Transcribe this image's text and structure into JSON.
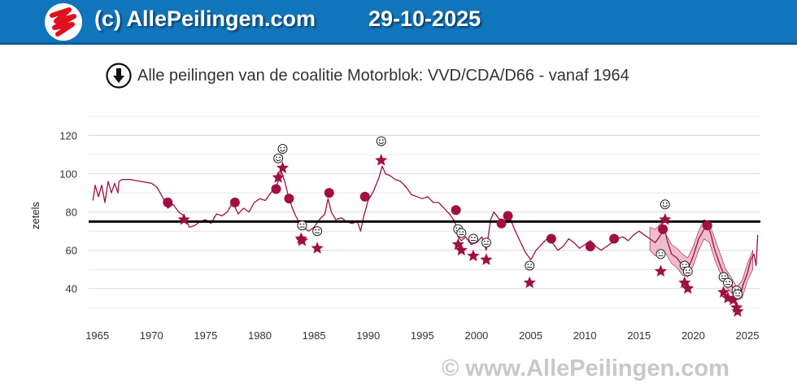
{
  "header": {
    "site_name": "(c) AllePeilingen.com",
    "date": "29-10-2025",
    "logo_icon": "allepeilingen-logo-icon"
  },
  "title_icon": "download-arrow-icon",
  "watermark": "© www.AllePeilingen.com",
  "colors": {
    "header_bg": "#1175bb",
    "line": "#a0103e",
    "band": "#e8a7bf",
    "majority_line": "#000000",
    "grid": "#d8d8d8"
  },
  "chart_data": {
    "type": "line",
    "title": "Alle peilingen van de coalitie Motorblok: VVD/CDA/D66 - vanaf 1964",
    "xlabel": "",
    "ylabel": "zetels",
    "xlim": [
      1964.2,
      2026.2
    ],
    "ylim": [
      25,
      130
    ],
    "x_ticks": [
      1965,
      1970,
      1975,
      1980,
      1985,
      1990,
      1995,
      2000,
      2005,
      2010,
      2015,
      2020,
      2025
    ],
    "y_ticks": [
      40,
      60,
      80,
      100,
      120
    ],
    "grid": true,
    "reference_line": {
      "y": 75
    },
    "series": [
      {
        "points": [
          [
            1964.6,
            86
          ],
          [
            1964.8,
            94
          ],
          [
            1965.1,
            88
          ],
          [
            1965.4,
            94
          ],
          [
            1965.7,
            85
          ],
          [
            1966.0,
            96
          ],
          [
            1966.3,
            90
          ],
          [
            1966.6,
            95
          ],
          [
            1966.9,
            90
          ],
          [
            1967.0,
            96
          ],
          [
            1967.3,
            97
          ],
          [
            1968.0,
            97
          ],
          [
            1969.0,
            96
          ],
          [
            1970.0,
            95
          ],
          [
            1970.5,
            93
          ],
          [
            1971.0,
            88
          ],
          [
            1971.5,
            82
          ],
          [
            1972.0,
            84
          ],
          [
            1972.5,
            80
          ],
          [
            1973.0,
            78
          ],
          [
            1973.5,
            72
          ],
          [
            1974.0,
            73
          ],
          [
            1974.5,
            75
          ],
          [
            1975.0,
            76
          ],
          [
            1975.5,
            74
          ],
          [
            1976.0,
            79
          ],
          [
            1976.5,
            78
          ],
          [
            1977.0,
            80
          ],
          [
            1977.5,
            85
          ],
          [
            1978.0,
            79
          ],
          [
            1978.5,
            82
          ],
          [
            1979.0,
            80
          ],
          [
            1979.5,
            85
          ],
          [
            1980.0,
            87
          ],
          [
            1980.5,
            86
          ],
          [
            1981.0,
            90
          ],
          [
            1981.5,
            93
          ],
          [
            1981.8,
            98
          ],
          [
            1982.0,
            101
          ],
          [
            1982.3,
            96
          ],
          [
            1982.6,
            89
          ],
          [
            1983.0,
            82
          ],
          [
            1983.3,
            78
          ],
          [
            1983.6,
            75
          ],
          [
            1984.0,
            72
          ],
          [
            1984.5,
            70
          ],
          [
            1985.0,
            72
          ],
          [
            1985.5,
            76
          ],
          [
            1986.0,
            79
          ],
          [
            1986.3,
            87
          ],
          [
            1986.6,
            80
          ],
          [
            1987.0,
            76
          ],
          [
            1987.5,
            77
          ],
          [
            1988.0,
            75
          ],
          [
            1988.5,
            74
          ],
          [
            1989.0,
            75
          ],
          [
            1989.3,
            70
          ],
          [
            1989.6,
            78
          ],
          [
            1990.0,
            86
          ],
          [
            1990.5,
            91
          ],
          [
            1991.0,
            98
          ],
          [
            1991.3,
            104
          ],
          [
            1991.6,
            100
          ],
          [
            1992.0,
            99
          ],
          [
            1992.5,
            97
          ],
          [
            1993.0,
            96
          ],
          [
            1993.5,
            93
          ],
          [
            1994.0,
            89
          ],
          [
            1994.5,
            88
          ],
          [
            1995.0,
            87
          ],
          [
            1995.5,
            88
          ],
          [
            1996.0,
            85
          ],
          [
            1996.5,
            85
          ],
          [
            1997.0,
            82
          ],
          [
            1997.5,
            79
          ],
          [
            1998.0,
            75
          ],
          [
            1998.3,
            67
          ],
          [
            1998.6,
            65
          ],
          [
            1999.0,
            67
          ],
          [
            1999.5,
            63
          ],
          [
            2000.0,
            64
          ],
          [
            2000.5,
            67
          ],
          [
            2000.9,
            60
          ],
          [
            2001.3,
            76
          ],
          [
            2001.6,
            80
          ],
          [
            2002.0,
            77
          ],
          [
            2002.5,
            74
          ],
          [
            2003.0,
            78
          ],
          [
            2003.5,
            71
          ],
          [
            2004.0,
            65
          ],
          [
            2004.5,
            59
          ],
          [
            2005.0,
            55
          ],
          [
            2005.5,
            60
          ],
          [
            2006.0,
            63
          ],
          [
            2006.5,
            66
          ],
          [
            2007.0,
            64
          ],
          [
            2007.5,
            60
          ],
          [
            2008.0,
            62
          ],
          [
            2008.5,
            66
          ],
          [
            2009.0,
            64
          ],
          [
            2009.5,
            61
          ],
          [
            2010.0,
            63
          ],
          [
            2010.5,
            65
          ],
          [
            2011.0,
            62
          ],
          [
            2011.5,
            60
          ],
          [
            2012.0,
            62
          ],
          [
            2012.5,
            64
          ],
          [
            2013.0,
            66
          ],
          [
            2013.5,
            67
          ],
          [
            2014.0,
            65
          ],
          [
            2014.5,
            68
          ],
          [
            2015.0,
            70
          ],
          [
            2015.5,
            68
          ],
          [
            2016.0,
            66
          ],
          [
            2016.5,
            64
          ],
          [
            2017.0,
            68
          ],
          [
            2017.3,
            73
          ],
          [
            2017.6,
            65
          ],
          [
            2018.0,
            58
          ],
          [
            2018.5,
            56
          ],
          [
            2019.0,
            52
          ],
          [
            2019.5,
            50
          ],
          [
            2020.0,
            57
          ],
          [
            2020.5,
            66
          ],
          [
            2021.0,
            71
          ],
          [
            2021.3,
            73
          ],
          [
            2021.6,
            69
          ],
          [
            2022.0,
            60
          ],
          [
            2022.5,
            52
          ],
          [
            2023.0,
            45
          ],
          [
            2023.5,
            42
          ],
          [
            2024.0,
            37
          ],
          [
            2024.3,
            35
          ],
          [
            2024.6,
            42
          ],
          [
            2025.0,
            48
          ],
          [
            2025.3,
            55
          ],
          [
            2025.6,
            58
          ],
          [
            2025.8,
            52
          ],
          [
            2025.95,
            68
          ]
        ]
      },
      {
        "band": [
          [
            2016.0,
            60,
            72
          ],
          [
            2016.5,
            57,
            71
          ],
          [
            2017.0,
            60,
            74
          ],
          [
            2017.5,
            58,
            68
          ],
          [
            2018.0,
            53,
            63
          ],
          [
            2018.5,
            51,
            61
          ],
          [
            2019.0,
            47,
            58
          ],
          [
            2019.5,
            46,
            56
          ],
          [
            2020.0,
            52,
            62
          ],
          [
            2020.5,
            60,
            70
          ],
          [
            2021.0,
            66,
            76
          ],
          [
            2021.5,
            64,
            74
          ],
          [
            2022.0,
            55,
            66
          ],
          [
            2022.5,
            48,
            58
          ],
          [
            2023.0,
            41,
            50
          ],
          [
            2023.5,
            38,
            46
          ],
          [
            2024.0,
            34,
            41
          ],
          [
            2024.5,
            35,
            44
          ],
          [
            2025.0,
            44,
            53
          ],
          [
            2025.5,
            50,
            60
          ]
        ]
      }
    ],
    "markers": [
      {
        "type": "dot",
        "x": 1971.5,
        "y": 85
      },
      {
        "type": "star",
        "x": 1973.0,
        "y": 76
      },
      {
        "type": "dot",
        "x": 1977.7,
        "y": 85
      },
      {
        "type": "dot",
        "x": 1981.5,
        "y": 92
      },
      {
        "type": "star",
        "x": 1981.7,
        "y": 98
      },
      {
        "type": "star",
        "x": 1982.1,
        "y": 103
      },
      {
        "type": "dot",
        "x": 1982.7,
        "y": 87
      },
      {
        "type": "star",
        "x": 1983.8,
        "y": 66
      },
      {
        "type": "star",
        "x": 1983.9,
        "y": 65
      },
      {
        "type": "star",
        "x": 1985.3,
        "y": 61
      },
      {
        "type": "dot",
        "x": 1986.4,
        "y": 90
      },
      {
        "type": "dot",
        "x": 1989.7,
        "y": 88
      },
      {
        "type": "star",
        "x": 1991.2,
        "y": 107
      },
      {
        "type": "dot",
        "x": 1998.1,
        "y": 81
      },
      {
        "type": "star",
        "x": 1998.3,
        "y": 63
      },
      {
        "type": "star",
        "x": 1998.6,
        "y": 60
      },
      {
        "type": "star",
        "x": 1999.7,
        "y": 57
      },
      {
        "type": "star",
        "x": 2000.9,
        "y": 55
      },
      {
        "type": "dot",
        "x": 2002.3,
        "y": 74
      },
      {
        "type": "dot",
        "x": 2002.9,
        "y": 78
      },
      {
        "type": "star",
        "x": 2004.9,
        "y": 43
      },
      {
        "type": "dot",
        "x": 2006.9,
        "y": 66
      },
      {
        "type": "dot",
        "x": 2010.5,
        "y": 62
      },
      {
        "type": "dot",
        "x": 2012.7,
        "y": 66
      },
      {
        "type": "star",
        "x": 2017.0,
        "y": 49
      },
      {
        "type": "dot",
        "x": 2017.2,
        "y": 71
      },
      {
        "type": "star",
        "x": 2017.4,
        "y": 76
      },
      {
        "type": "star",
        "x": 2019.2,
        "y": 43
      },
      {
        "type": "star",
        "x": 2019.5,
        "y": 40
      },
      {
        "type": "dot",
        "x": 2021.3,
        "y": 73
      },
      {
        "type": "star",
        "x": 2022.8,
        "y": 38
      },
      {
        "type": "star",
        "x": 2023.2,
        "y": 35
      },
      {
        "type": "star",
        "x": 2023.7,
        "y": 34
      },
      {
        "type": "star",
        "x": 2024.0,
        "y": 30
      },
      {
        "type": "star",
        "x": 2024.1,
        "y": 28
      }
    ],
    "annotations": [
      {
        "icon": "happy-face-icon",
        "x": 1981.7,
        "y": 108
      },
      {
        "icon": "happy-face-icon",
        "x": 1982.1,
        "y": 113
      },
      {
        "icon": "neutral-face-icon",
        "x": 1983.9,
        "y": 73
      },
      {
        "icon": "neutral-face-icon",
        "x": 1985.3,
        "y": 70
      },
      {
        "icon": "happy-face-icon",
        "x": 1991.2,
        "y": 117
      },
      {
        "icon": "neutral-face-icon",
        "x": 1998.3,
        "y": 71
      },
      {
        "icon": "neutral-face-icon",
        "x": 1998.6,
        "y": 69
      },
      {
        "icon": "neutral-face-icon",
        "x": 1999.7,
        "y": 66
      },
      {
        "icon": "neutral-face-icon",
        "x": 2000.9,
        "y": 64
      },
      {
        "icon": "neutral-face-icon",
        "x": 2004.9,
        "y": 52
      },
      {
        "icon": "neutral-face-icon",
        "x": 2017.0,
        "y": 58
      },
      {
        "icon": "happy-face-icon",
        "x": 2017.4,
        "y": 84
      },
      {
        "icon": "neutral-face-icon",
        "x": 2019.2,
        "y": 52
      },
      {
        "icon": "neutral-face-icon",
        "x": 2019.5,
        "y": 49
      },
      {
        "icon": "neutral-face-icon",
        "x": 2022.8,
        "y": 46
      },
      {
        "icon": "neutral-face-icon",
        "x": 2023.2,
        "y": 43
      },
      {
        "icon": "neutral-face-icon",
        "x": 2024.0,
        "y": 39
      },
      {
        "icon": "neutral-face-icon",
        "x": 2024.1,
        "y": 37
      }
    ]
  }
}
